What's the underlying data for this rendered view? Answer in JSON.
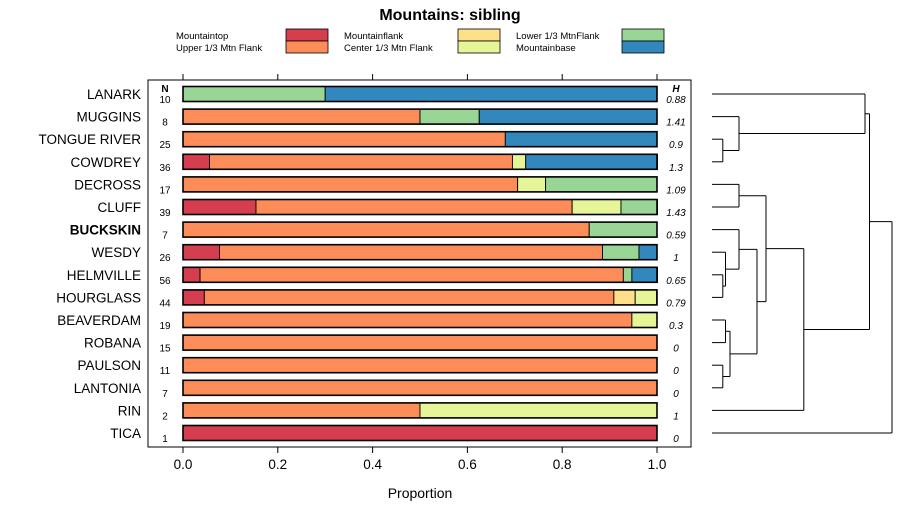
{
  "chart_data": {
    "type": "bar",
    "orientation": "horizontal",
    "stacked": true,
    "title": "Mountains: sibling",
    "xlabel": "Proportion",
    "ylabel": "",
    "xlim": [
      0,
      1
    ],
    "x_ticks": [
      "0.0",
      "0.2",
      "0.4",
      "0.6",
      "0.8",
      "1.0"
    ],
    "n_header": "N",
    "h_header": "H",
    "highlight": "BUCKSKIN",
    "legend_position": "top",
    "legend": [
      {
        "name": "Mountaintop",
        "color": "#d53e4f"
      },
      {
        "name": "Upper 1/3 Mtn Flank",
        "color": "#fc8d59"
      },
      {
        "name": "Mountainflank",
        "color": "#fee08b"
      },
      {
        "name": "Center 1/3 Mtn Flank",
        "color": "#e6f598"
      },
      {
        "name": "Lower 1/3 MtnFlank",
        "color": "#99d594"
      },
      {
        "name": "Mountainbase",
        "color": "#3288bd"
      }
    ],
    "series_order": [
      "Mountaintop",
      "Upper 1/3 Mtn Flank",
      "Mountainflank",
      "Center 1/3 Mtn Flank",
      "Lower 1/3 MtnFlank",
      "Mountainbase"
    ],
    "rows": [
      {
        "label": "LANARK",
        "n": "10",
        "h": "0.88",
        "values": [
          0,
          0,
          0,
          0,
          0.3,
          0.7
        ]
      },
      {
        "label": "MUGGINS",
        "n": "8",
        "h": "1.41",
        "values": [
          0,
          0.5,
          0,
          0,
          0.125,
          0.375
        ]
      },
      {
        "label": "TONGUE RIVER",
        "n": "25",
        "h": "0.9",
        "values": [
          0,
          0.68,
          0,
          0,
          0,
          0.32
        ]
      },
      {
        "label": "COWDREY",
        "n": "36",
        "h": "1.3",
        "values": [
          0.056,
          0.639,
          0,
          0.028,
          0,
          0.278
        ]
      },
      {
        "label": "DECROSS",
        "n": "17",
        "h": "1.09",
        "values": [
          0,
          0.706,
          0,
          0.059,
          0.235,
          0
        ]
      },
      {
        "label": "CLUFF",
        "n": "39",
        "h": "1.43",
        "values": [
          0.154,
          0.667,
          0,
          0.103,
          0.077,
          0
        ]
      },
      {
        "label": "BUCKSKIN",
        "n": "7",
        "h": "0.59",
        "values": [
          0,
          0.857,
          0,
          0,
          0.143,
          0
        ]
      },
      {
        "label": "WESDY",
        "n": "26",
        "h": "1",
        "values": [
          0.077,
          0.808,
          0,
          0,
          0.077,
          0.038
        ]
      },
      {
        "label": "HELMVILLE",
        "n": "56",
        "h": "0.65",
        "values": [
          0.036,
          0.893,
          0,
          0,
          0.018,
          0.054
        ]
      },
      {
        "label": "HOURGLASS",
        "n": "44",
        "h": "0.79",
        "values": [
          0.045,
          0.864,
          0.045,
          0.045,
          0,
          0
        ]
      },
      {
        "label": "BEAVERDAM",
        "n": "19",
        "h": "0.3",
        "values": [
          0,
          0.947,
          0,
          0.053,
          0,
          0
        ]
      },
      {
        "label": "ROBANA",
        "n": "15",
        "h": "0",
        "values": [
          0,
          1,
          0,
          0,
          0,
          0
        ]
      },
      {
        "label": "PAULSON",
        "n": "11",
        "h": "0",
        "values": [
          0,
          1,
          0,
          0,
          0,
          0
        ]
      },
      {
        "label": "LANTONIA",
        "n": "7",
        "h": "0",
        "values": [
          0,
          1,
          0,
          0,
          0,
          0
        ]
      },
      {
        "label": "RIN",
        "n": "2",
        "h": "1",
        "values": [
          0,
          0.5,
          0,
          0.5,
          0,
          0
        ]
      },
      {
        "label": "TICA",
        "n": "1",
        "h": "0",
        "values": [
          1,
          0,
          0,
          0,
          0,
          0
        ]
      }
    ],
    "dendrogram": {
      "leaf_order": [
        "LANARK",
        "MUGGINS",
        "TONGUE RIVER",
        "COWDREY",
        "DECROSS",
        "CLUFF",
        "BUCKSKIN",
        "WESDY",
        "HELMVILLE",
        "HOURGLASS",
        "BEAVERDAM",
        "ROBANA",
        "PAULSON",
        "LANTONIA",
        "RIN",
        "TICA"
      ],
      "merges": [
        {
          "a": 2,
          "b": 3,
          "height": 0.12
        },
        {
          "a": 12,
          "b": 13,
          "height": 0.12
        },
        {
          "a": 8,
          "b": 9,
          "height": 0.12
        },
        {
          "a": 7,
          "b": 8.5,
          "height": 0.15
        },
        {
          "a": 10,
          "b": 11,
          "height": 0.15
        },
        {
          "a": 10.5,
          "b": 12.5,
          "height": 0.2
        },
        {
          "a": 1,
          "b": 2.5,
          "height": 0.3
        },
        {
          "a": 4,
          "b": 5,
          "height": 0.3
        },
        {
          "a": 6,
          "b": 7.75,
          "height": 0.3
        },
        {
          "a": 6.875,
          "b": 11.5,
          "height": 0.5
        },
        {
          "a": 4.5,
          "b": 9.1875,
          "height": 0.6
        },
        {
          "a": 6.84375,
          "b": 14,
          "height": 1.02
        },
        {
          "a": 0,
          "b": 1.75,
          "height": 1.7
        },
        {
          "a": 0.875,
          "b": 10.421875,
          "height": 1.75
        },
        {
          "a": 5.6484375,
          "b": 15,
          "height": 2.0
        }
      ]
    }
  }
}
